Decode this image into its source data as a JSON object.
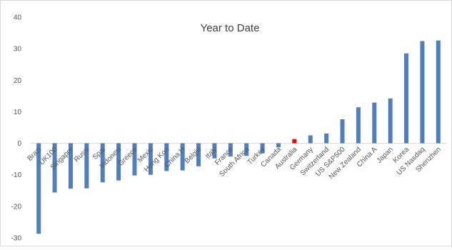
{
  "chart_data": {
    "type": "bar",
    "title": "Year to Date",
    "xlabel": "",
    "ylabel": "",
    "ylim": [
      -30,
      40
    ],
    "yticks": [
      -30,
      -20,
      -10,
      0,
      10,
      20,
      30,
      40
    ],
    "grid": false,
    "legend": "none",
    "categories": [
      "Brazil",
      "UK100",
      "Singapore",
      "Russia",
      "Spain",
      "Indonesia",
      "Greece",
      "Mexico",
      "Hong Kong",
      "China H",
      "Belgium",
      "Italy",
      "France",
      "South Africa",
      "Turkey",
      "Canada",
      "Australia",
      "Germany",
      "Switzerland",
      "US S&P500",
      "New Zealand",
      "China A",
      "Japan",
      "Korea",
      "US Nasdaq",
      "Shenzhen"
    ],
    "visible_labels": [
      "Brazi",
      "UK100",
      "Singapor",
      "Russi",
      "Spai",
      "Indonesi",
      "Greece",
      "Mexic",
      "Hong Kon",
      "China H",
      "Belgiu",
      "Italy",
      "France",
      "South Africa",
      "Turkey",
      "Canada",
      "Australia",
      "Germany",
      "Switzerland",
      "US S&P500",
      "New Zealand",
      "China A",
      "Japan",
      "Korea",
      "US Nasdaq",
      "Shenzhen"
    ],
    "series": [
      {
        "values": [
          -28.7,
          -15.6,
          -14.4,
          -14.3,
          -12.4,
          -11.8,
          -10.2,
          -10.0,
          -8.8,
          -8.6,
          -7.3,
          -4.8,
          -4.2,
          -4.0,
          -3.2,
          -1.3,
          1.3,
          2.5,
          3.1,
          7.6,
          11.4,
          12.9,
          14.2,
          28.5,
          32.4,
          32.6
        ]
      }
    ],
    "colors": {
      "bar": "#4f7fc0",
      "highlight": "#ff0000",
      "axis": "#d9d9d9",
      "text": "#595959"
    },
    "highlight_index": 16
  }
}
